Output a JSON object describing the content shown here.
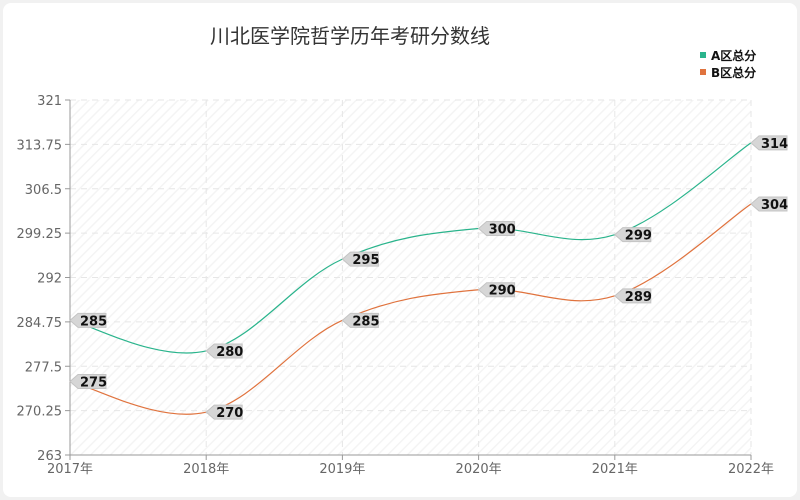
{
  "chart_data": {
    "type": "line",
    "title": "川北医学院哲学历年考研分数线",
    "categories": [
      "2017年",
      "2018年",
      "2019年",
      "2020年",
      "2021年",
      "2022年"
    ],
    "series": [
      {
        "name": "A区总分",
        "color": "#2ab48c",
        "values": [
          285,
          280,
          295,
          300,
          299,
          314
        ]
      },
      {
        "name": "B区总分",
        "color": "#e0733e",
        "values": [
          275,
          270,
          285,
          290,
          289,
          304
        ]
      }
    ],
    "ylim": [
      263,
      321
    ],
    "yticks": [
      "263",
      "270.25",
      "277.5",
      "284.75",
      "292",
      "299.25",
      "306.5",
      "313.75",
      "321"
    ],
    "grid": true,
    "legend_position": "top-right",
    "background": "#f1f1f1"
  }
}
